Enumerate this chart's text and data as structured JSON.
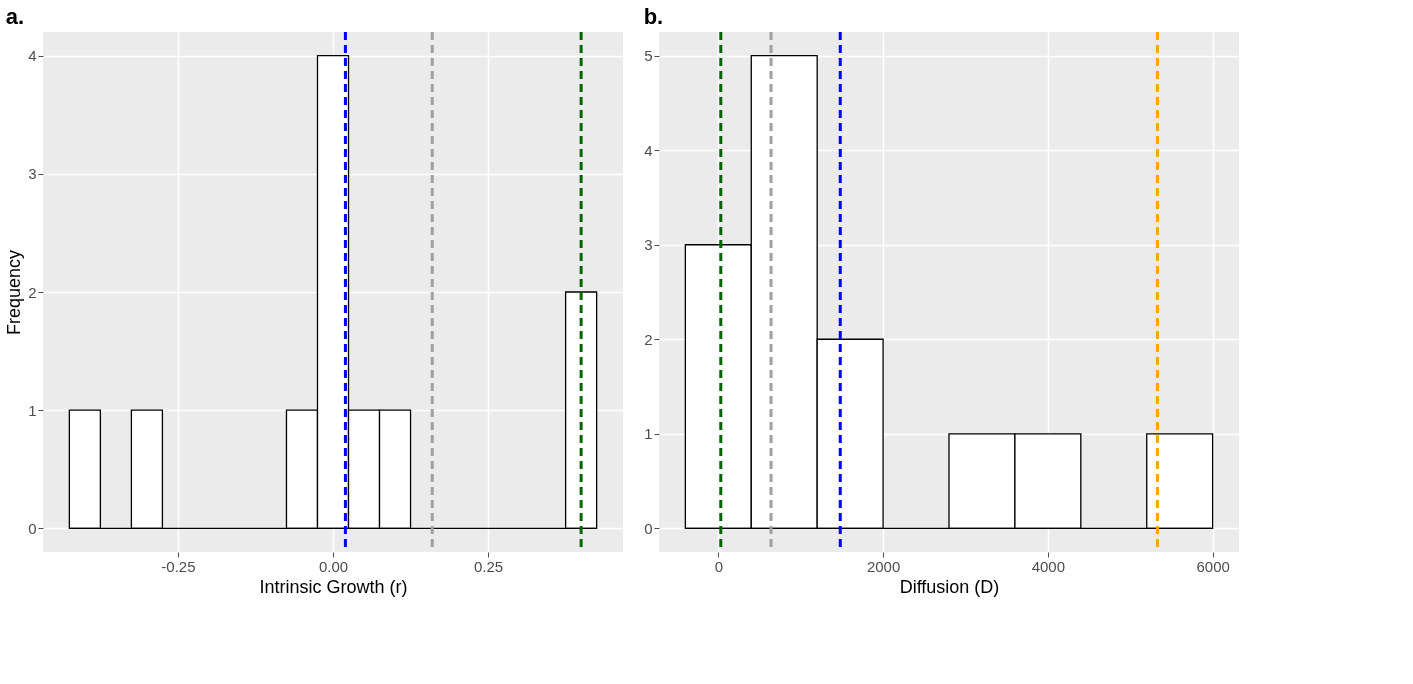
{
  "chart_data": [
    {
      "type": "histogram",
      "title": "a.",
      "xlabel": "Intrinsic Growth (r)",
      "ylabel": "Frequency",
      "bins": [
        -0.425,
        -0.375,
        -0.325,
        -0.275,
        -0.225,
        -0.175,
        -0.125,
        -0.075,
        -0.025,
        0.025,
        0.075,
        0.125,
        0.175,
        0.225,
        0.275,
        0.325,
        0.375,
        0.425
      ],
      "values": [
        1,
        0,
        1,
        0,
        0,
        0,
        0,
        1,
        4,
        1,
        1,
        0,
        0,
        0,
        0,
        0,
        2
      ],
      "color": "#ffffff",
      "xlim": [
        -0.4675,
        0.4675
      ],
      "xticks": [
        {
          "value": -0.25,
          "label": "-0.25"
        },
        {
          "value": 0,
          "label": "0.00"
        },
        {
          "value": 0.25,
          "label": "0.25"
        }
      ],
      "ylim": [
        -0.2,
        4.2
      ],
      "yticks": [
        0,
        1,
        2,
        3,
        4
      ],
      "grid": true,
      "ref_lines": [
        {
          "axis": "x",
          "value": 0.02,
          "color": "#0000ff",
          "line_style": "dashed"
        },
        {
          "axis": "x",
          "value": 0.16,
          "color": "#a0a0a0",
          "line_style": "dashed"
        },
        {
          "axis": "x",
          "value": 0.4,
          "color": "#006400",
          "line_style": "dashed"
        }
      ]
    },
    {
      "type": "histogram",
      "title": "b.",
      "xlabel": "Diffusion (D)",
      "bins": [
        -400,
        400,
        1200,
        2000,
        2800,
        3600,
        4400,
        5200,
        6000
      ],
      "values": [
        3,
        5,
        2,
        0,
        1,
        1,
        0,
        1
      ],
      "color": "#ffffff",
      "xlim": [
        -720,
        6320
      ],
      "xticks": [
        0,
        2000,
        4000,
        6000
      ],
      "ylim": [
        -0.25,
        5.25
      ],
      "yticks": [
        0,
        1,
        2,
        3,
        4,
        5
      ],
      "grid": true,
      "ref_lines": [
        {
          "axis": "x",
          "value": 30,
          "color": "#006400",
          "line_style": "dashed"
        },
        {
          "axis": "x",
          "value": 640,
          "color": "#a0a0a0",
          "line_style": "dashed"
        },
        {
          "axis": "x",
          "value": 1480,
          "color": "#0000ff",
          "line_style": "dashed"
        },
        {
          "axis": "x",
          "value": 5330,
          "color": "#ffa500",
          "line_style": "dashed"
        }
      ]
    }
  ]
}
